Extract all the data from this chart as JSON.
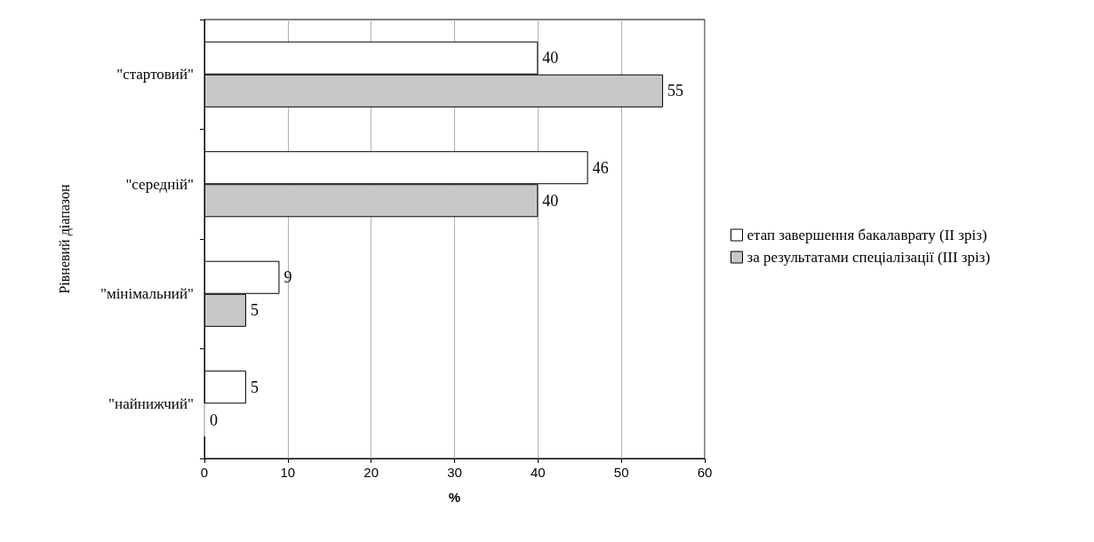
{
  "chart_data": {
    "type": "bar",
    "orientation": "horizontal",
    "xlabel": "%",
    "ylabel": "Рівневий діапазон",
    "categories": [
      "\"стартовий\"",
      "\"середній\"",
      "\"мінімальний\"",
      "\"найнижчий\""
    ],
    "series": [
      {
        "name": "етап завершення бакалаврату (ІІ зріз)",
        "color": "#ffffff",
        "values": [
          40,
          46,
          9,
          5
        ]
      },
      {
        "name": "за результатами спеціалізації (ІІІ зріз)",
        "color": "#c8c8c8",
        "values": [
          55,
          40,
          5,
          0
        ]
      }
    ],
    "xlim": [
      0,
      60
    ],
    "xticks": [
      0,
      10,
      20,
      30,
      40,
      50,
      60
    ],
    "grid": "x",
    "legend": "right",
    "data_labels": true
  }
}
